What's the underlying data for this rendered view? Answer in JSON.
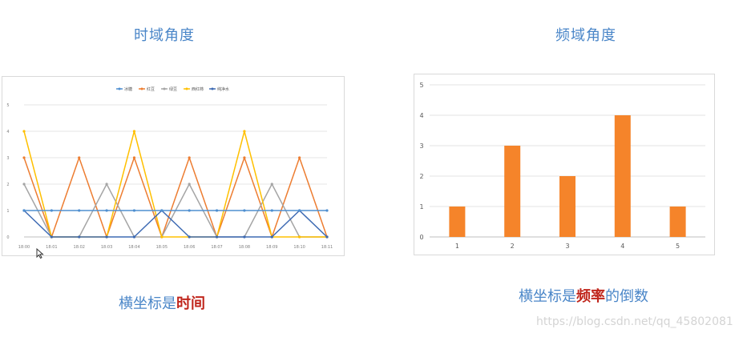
{
  "headings": {
    "time": "时域角度",
    "freq": "频域角度"
  },
  "captions": {
    "time_prefix": "横坐标是",
    "time_em": "时间",
    "freq_prefix": "横坐标是",
    "freq_em": "频率",
    "freq_suffix": "的倒数"
  },
  "watermark": "https://blog.csdn.net/qq_45802081",
  "chart_data": [
    {
      "type": "line",
      "title": "",
      "legend_position": "top",
      "grid": true,
      "ylim": [
        0,
        5
      ],
      "yticks": [
        "0",
        "1",
        "2",
        "3",
        "4",
        "5"
      ],
      "categories": [
        "18:00",
        "18:01",
        "18:02",
        "18:03",
        "18:04",
        "18:05",
        "18:06",
        "18:07",
        "18:08",
        "18:09",
        "18:10",
        "18:11"
      ],
      "series": [
        {
          "name": "冰糖",
          "color": "#4f8fd0",
          "values": [
            1,
            1,
            1,
            1,
            1,
            1,
            1,
            1,
            1,
            1,
            1,
            1
          ]
        },
        {
          "name": "红豆",
          "color": "#ed7d31",
          "values": [
            3,
            0,
            3,
            0,
            3,
            0,
            3,
            0,
            3,
            0,
            3,
            0
          ]
        },
        {
          "name": "绿豆",
          "color": "#a5a5a5",
          "values": [
            2,
            0,
            0,
            2,
            0,
            0,
            2,
            0,
            0,
            2,
            0,
            0
          ]
        },
        {
          "name": "西红柿",
          "color": "#ffc000",
          "values": [
            4,
            0,
            0,
            0,
            4,
            0,
            0,
            0,
            4,
            0,
            0,
            0
          ]
        },
        {
          "name": "纯净水",
          "color": "#3d6ab3",
          "values": [
            1,
            0,
            0,
            0,
            0,
            1,
            0,
            0,
            0,
            0,
            1,
            0
          ]
        }
      ]
    },
    {
      "type": "bar",
      "title": "",
      "grid": true,
      "ylim": [
        0,
        5
      ],
      "yticks": [
        "0",
        "1",
        "2",
        "3",
        "4",
        "5"
      ],
      "categories": [
        "1",
        "2",
        "3",
        "4",
        "5"
      ],
      "values": [
        1,
        3,
        2,
        4,
        1
      ],
      "color": "#f5842a"
    }
  ]
}
